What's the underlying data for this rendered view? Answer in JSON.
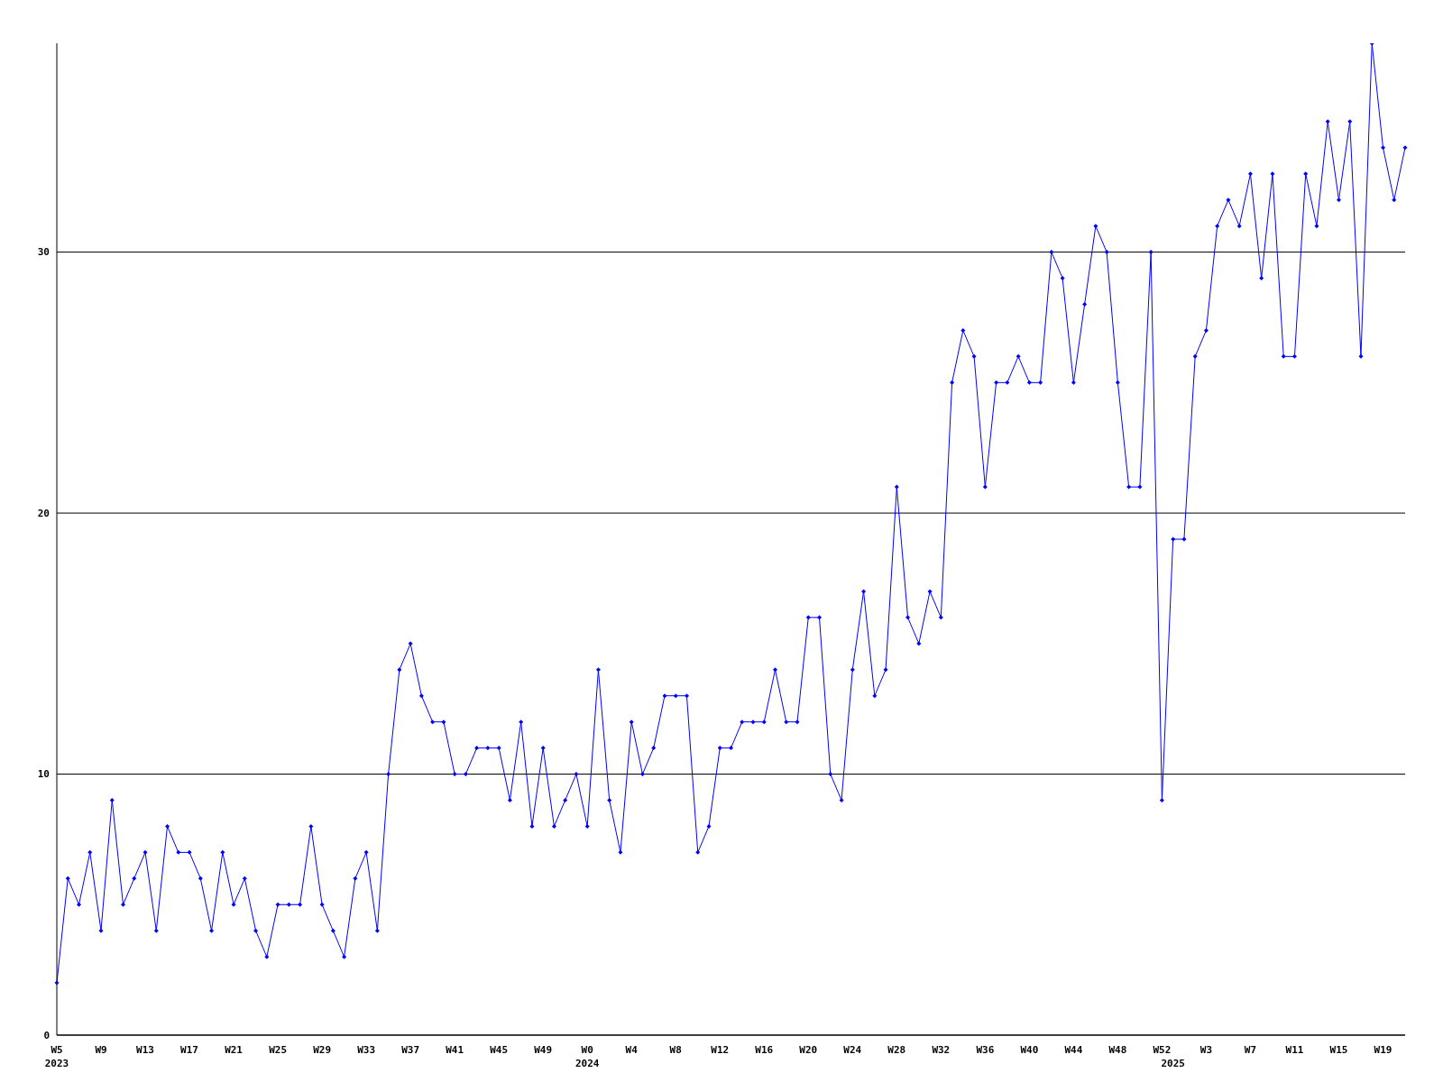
{
  "chart_data": {
    "type": "line",
    "categories": [
      "W5",
      null,
      null,
      null,
      "W9",
      null,
      null,
      null,
      "W13",
      null,
      null,
      null,
      "W17",
      null,
      null,
      null,
      "W21",
      null,
      null,
      null,
      "W25",
      null,
      null,
      null,
      "W29",
      null,
      null,
      null,
      "W33",
      null,
      null,
      null,
      "W37",
      null,
      null,
      null,
      "W41",
      null,
      null,
      null,
      "W45",
      null,
      null,
      null,
      "W49",
      null,
      null,
      null,
      "W0",
      null,
      null,
      null,
      "W4",
      null,
      null,
      null,
      "W8",
      null,
      null,
      null,
      "W12",
      null,
      null,
      null,
      "W16",
      null,
      null,
      null,
      "W20",
      null,
      null,
      null,
      "W24",
      null,
      null,
      null,
      "W28",
      null,
      null,
      null,
      "W32",
      null,
      null,
      null,
      "W36",
      null,
      null,
      null,
      "W40",
      null,
      null,
      null,
      "W44",
      null,
      null,
      null,
      "W48",
      null,
      null,
      null,
      "W52",
      null,
      null,
      null,
      "W3",
      null,
      null,
      null,
      "W7",
      null,
      null,
      null,
      "W11",
      null,
      null,
      null,
      "W15",
      null,
      null,
      null,
      "W19",
      null,
      null
    ],
    "series": [
      {
        "color": "#0000ff",
        "values": [
          2,
          6,
          5,
          7,
          4,
          9,
          5,
          6,
          7,
          4,
          8,
          7,
          7,
          6,
          4,
          7,
          5,
          6,
          4,
          3,
          5,
          5,
          5,
          8,
          5,
          4,
          3,
          6,
          7,
          4,
          10,
          14,
          15,
          13,
          12,
          12,
          10,
          10,
          11,
          11,
          11,
          9,
          12,
          8,
          11,
          8,
          9,
          10,
          8,
          14,
          9,
          7,
          12,
          10,
          11,
          13,
          13,
          13,
          7,
          8,
          11,
          11,
          12,
          12,
          12,
          14,
          12,
          12,
          16,
          16,
          10,
          9,
          14,
          17,
          13,
          14,
          21,
          16,
          15,
          17,
          16,
          25,
          27,
          26,
          21,
          25,
          25,
          26,
          25,
          25,
          30,
          29,
          25,
          28,
          31,
          30,
          25,
          21,
          21,
          30,
          9,
          19,
          19,
          26,
          27,
          31,
          32,
          31,
          33,
          29,
          33,
          26,
          26,
          33,
          31,
          35,
          32,
          35,
          26,
          38,
          34,
          32,
          34
        ]
      }
    ],
    "annotations": [
      "2023",
      "2024",
      "2025"
    ],
    "ylim": [
      0,
      38
    ],
    "yticks": [
      0,
      10,
      20,
      30
    ],
    "grid": "y",
    "marker": "diamond",
    "line_style": "solid"
  }
}
